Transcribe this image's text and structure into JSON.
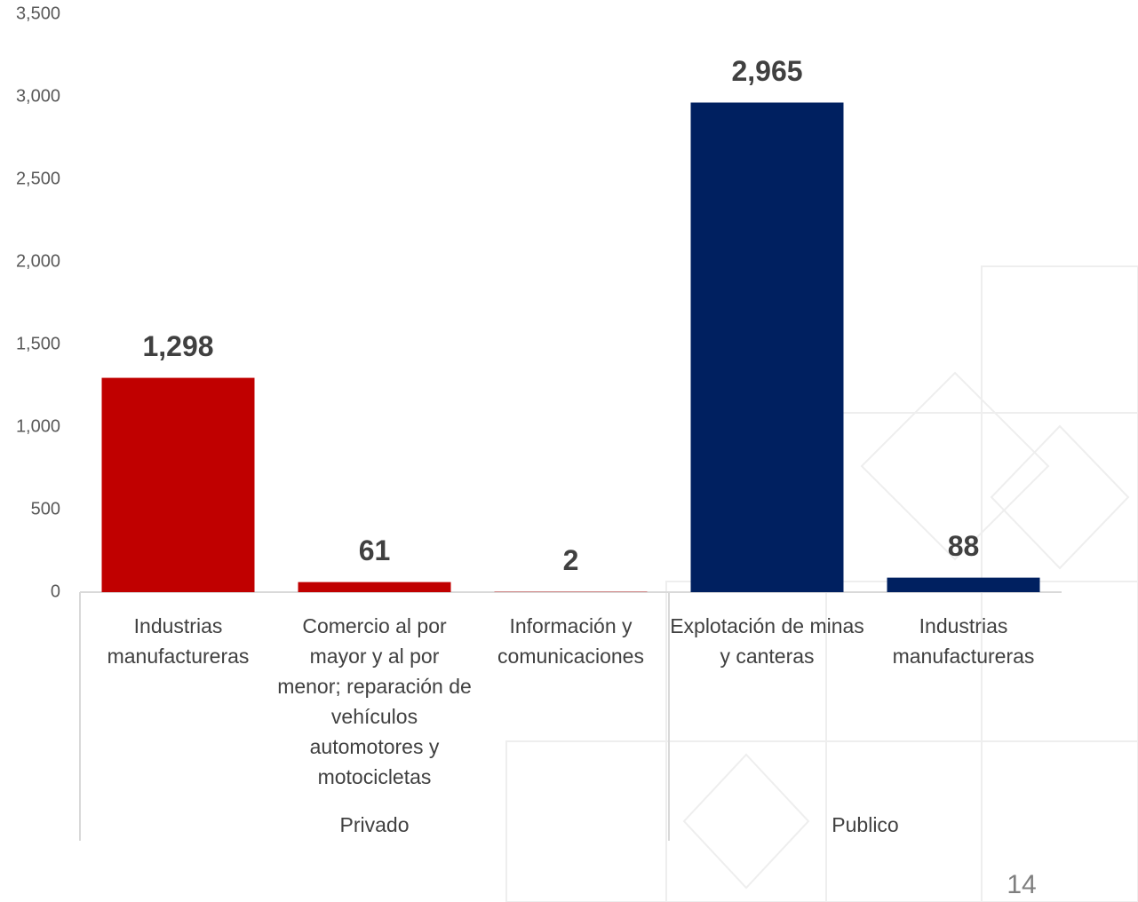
{
  "chart_data": {
    "type": "bar",
    "categories": [
      "Industrias manufactureras",
      "Comercio al por mayor y al por menor; reparación de vehículos automotores y motocicletas",
      "Información y comunicaciones",
      "Explotación de minas y canteras",
      "Industrias manufactureras"
    ],
    "series": [
      {
        "name": "Privado",
        "color": "#c00000",
        "values": [
          1298,
          61,
          2,
          null,
          null
        ],
        "value_labels": [
          "1,298",
          "61",
          "2",
          null,
          null
        ]
      },
      {
        "name": "Publico",
        "color": "#002060",
        "values": [
          null,
          null,
          null,
          2965,
          88
        ],
        "value_labels": [
          null,
          null,
          null,
          "2,965",
          "88"
        ]
      }
    ],
    "ylim": [
      0,
      3500
    ],
    "yticks": [
      0,
      500,
      {
        "value": 1000,
        "label": "1,000"
      },
      {
        "value": 1500,
        "label": "1,500"
      },
      {
        "value": 2000,
        "label": "2,000"
      },
      {
        "value": 2500,
        "label": "2,500"
      },
      {
        "value": 3000,
        "label": "3,000"
      },
      {
        "value": 3500,
        "label": "3,500"
      }
    ],
    "grid": false
  },
  "page_number": "14"
}
